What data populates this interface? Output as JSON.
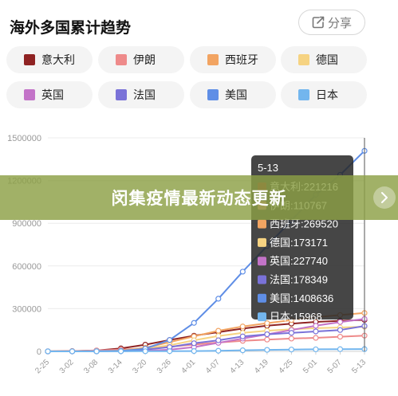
{
  "header": {
    "title": "海外多国累计趋势",
    "share_label": "分享",
    "share_icon": "share-icon"
  },
  "legend": [
    {
      "name": "意大利",
      "color": "#8f2323"
    },
    {
      "name": "伊朗",
      "color": "#ee8a8a"
    },
    {
      "name": "西班牙",
      "color": "#f2a462"
    },
    {
      "name": "德国",
      "color": "#f6d382"
    },
    {
      "name": "英国",
      "color": "#c373c8"
    },
    {
      "name": "法国",
      "color": "#7a72d8"
    },
    {
      "name": "美国",
      "color": "#5f8ee6"
    },
    {
      "name": "日本",
      "color": "#73b6ee"
    }
  ],
  "banner": {
    "text": "闵集疫情最新动态更新"
  },
  "chart_data": {
    "type": "line",
    "x": [
      "2-25",
      "3-02",
      "3-08",
      "3-14",
      "3-20",
      "3-26",
      "4-01",
      "4-07",
      "4-13",
      "4-19",
      "4-25",
      "5-01",
      "5-07",
      "5-13"
    ],
    "yticks": [
      0,
      300000,
      600000,
      900000,
      1200000,
      1500000
    ],
    "ytick_labels": [
      "0",
      "300000",
      "600000",
      "900000",
      "1200000",
      "1500000"
    ],
    "ylim": [
      0,
      1500000
    ],
    "grid": true,
    "series": [
      {
        "name": "意大利",
        "color": "#8f2323",
        "values": [
          300,
          2000,
          6000,
          21000,
          47000,
          80000,
          110000,
          135000,
          160000,
          180000,
          195000,
          207000,
          215000,
          221216
        ]
      },
      {
        "name": "伊朗",
        "color": "#ee8a8a",
        "values": [
          100,
          1500,
          6500,
          13000,
          20000,
          32000,
          48000,
          62000,
          74000,
          83000,
          90000,
          95000,
          103000,
          110767
        ]
      },
      {
        "name": "西班牙",
        "color": "#f2a462",
        "values": [
          10,
          200,
          1000,
          6000,
          25000,
          65000,
          105000,
          145000,
          175000,
          198000,
          220000,
          240000,
          255000,
          269520
        ]
      },
      {
        "name": "德国",
        "color": "#f6d382",
        "values": [
          20,
          150,
          900,
          4500,
          19000,
          43000,
          78000,
          108000,
          130000,
          145000,
          155000,
          163000,
          168000,
          173171
        ]
      },
      {
        "name": "英国",
        "color": "#c373c8",
        "values": [
          10,
          40,
          300,
          1200,
          4000,
          12000,
          30000,
          60000,
          90000,
          120000,
          150000,
          180000,
          206000,
          227740
        ]
      },
      {
        "name": "法国",
        "color": "#7a72d8",
        "values": [
          10,
          190,
          900,
          4500,
          13000,
          30000,
          57000,
          78000,
          105000,
          120000,
          130000,
          140000,
          150000,
          178349
        ]
      },
      {
        "name": "美国",
        "color": "#5f8ee6",
        "values": [
          50,
          100,
          500,
          3000,
          19000,
          80000,
          200000,
          370000,
          560000,
          740000,
          920000,
          1100000,
          1240000,
          1408636
        ]
      },
      {
        "name": "日本",
        "color": "#73b6ee",
        "values": [
          160,
          250,
          500,
          800,
          1000,
          1400,
          2300,
          4300,
          7600,
          10600,
          13000,
          14300,
          15400,
          15968
        ]
      }
    ],
    "tooltip": {
      "title": "5-13",
      "entries": [
        "意大利:221216",
        "伊朗:110767",
        "西班牙:269520",
        "德国:173171",
        "英国:227740",
        "法国:178349",
        "美国:1408636",
        "日本:15968"
      ]
    }
  }
}
